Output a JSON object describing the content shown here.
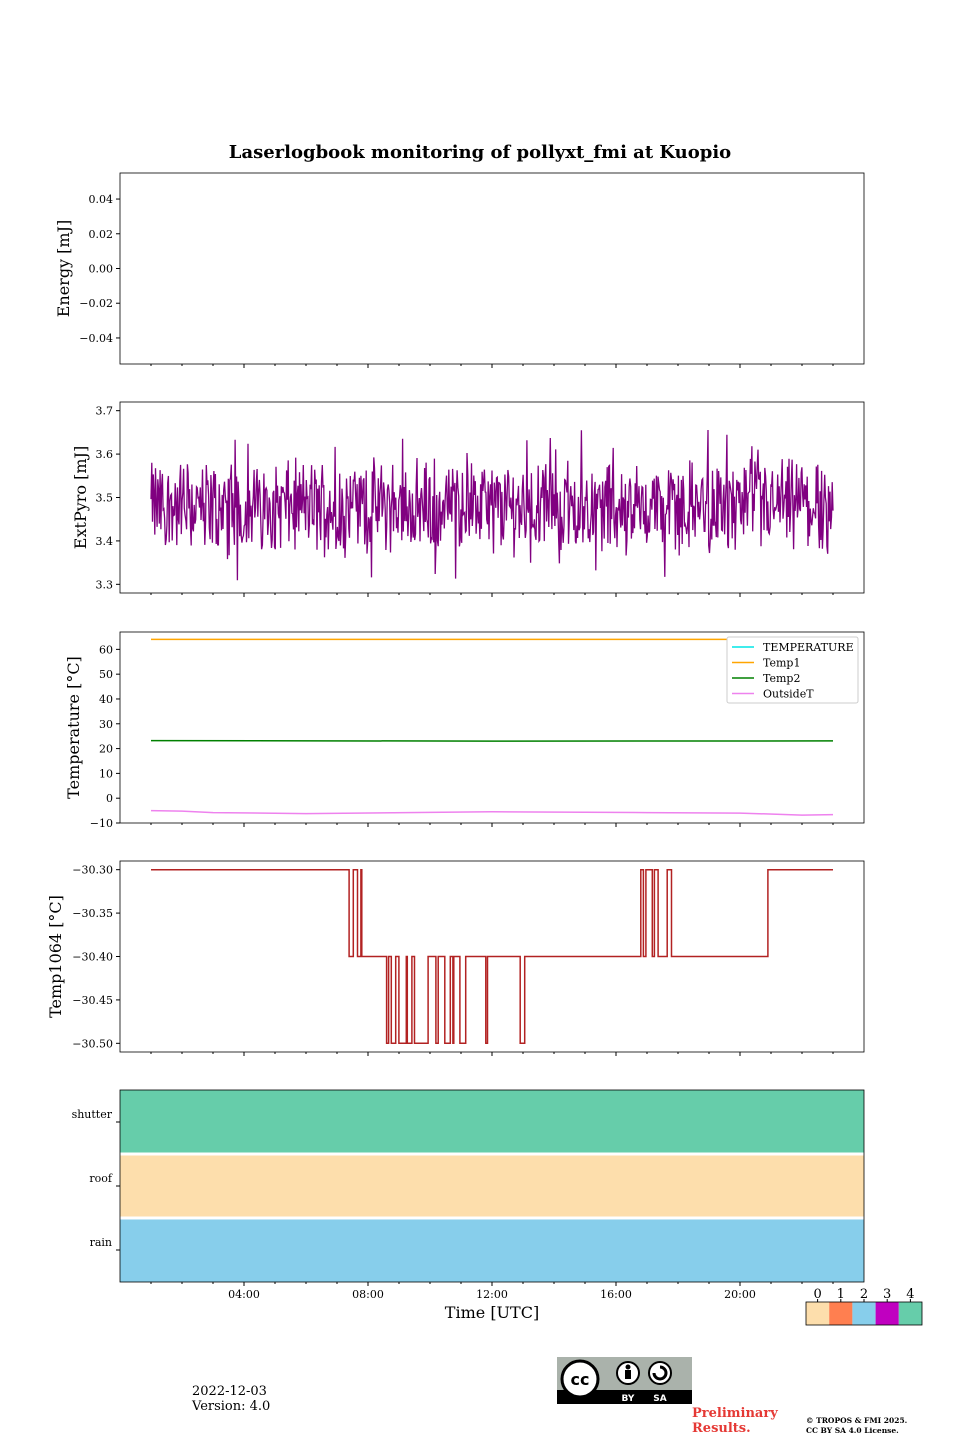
{
  "chart_data": {
    "title": "Laserlogbook monitoring of pollyxt_fmi at Kuopio",
    "xlabel": "Time [UTC]",
    "xticks": [
      "04:00",
      "08:00",
      "12:00",
      "16:00",
      "20:00"
    ],
    "panels": [
      {
        "type": "line",
        "ylabel": "Energy [mJ]",
        "yticks": [
          "0.04",
          "0.02",
          "0.00",
          "−0.02",
          "−0.04"
        ],
        "ylim": [
          -0.055,
          0.055
        ],
        "series": []
      },
      {
        "type": "line",
        "ylabel": "ExtPyro [mJ]",
        "yticks": [
          "3.7",
          "3.6",
          "3.5",
          "3.4",
          "3.3"
        ],
        "ylim": [
          3.28,
          3.72
        ],
        "series": [
          {
            "name": "ExtPyro",
            "color": "#800080",
            "mean": 3.48,
            "range": [
              3.3,
              3.7
            ],
            "description": "noisy signal fluctuating around 3.48 mJ between 01:00 and 23:00"
          }
        ]
      },
      {
        "type": "line",
        "ylabel": "Temperature [°C]",
        "yticks": [
          "60",
          "50",
          "40",
          "30",
          "20",
          "10",
          "0",
          "−10"
        ],
        "ylim": [
          -10,
          67
        ],
        "legend": [
          "TEMPERATURE",
          "Temp1",
          "Temp2",
          "OutsideT"
        ],
        "legend_colors": [
          "#00e5e5",
          "#ffa500",
          "#008000",
          "#ee82ee"
        ],
        "series": [
          {
            "name": "TEMPERATURE",
            "color": "#00e5e5",
            "values": []
          },
          {
            "name": "Temp1",
            "color": "#ffa500",
            "x": [
              1,
              23
            ],
            "values": [
              64,
              64
            ]
          },
          {
            "name": "Temp2",
            "color": "#008000",
            "x": [
              1,
              12,
              23
            ],
            "values": [
              23.2,
              23.0,
              23.1
            ]
          },
          {
            "name": "OutsideT",
            "color": "#ee82ee",
            "x": [
              1,
              2,
              3,
              6,
              12,
              17,
              20,
              22,
              23
            ],
            "values": [
              -5,
              -5.2,
              -5.8,
              -6.2,
              -5.5,
              -5.8,
              -6.0,
              -6.8,
              -6.6
            ]
          }
        ]
      },
      {
        "type": "step",
        "ylabel": "Temp1064 [°C]",
        "yticks": [
          "−30.30",
          "−30.35",
          "−30.40",
          "−30.45",
          "−30.50"
        ],
        "ylim": [
          -30.51,
          -30.29
        ],
        "series": [
          {
            "name": "Temp1064",
            "color": "#b22222",
            "levels": [
              -30.3,
              -30.4,
              -30.5
            ]
          }
        ]
      },
      {
        "type": "heatmap",
        "rows": [
          "shutter",
          "roof",
          "rain"
        ],
        "row_colors": [
          "#66cdaa",
          "#fddeac",
          "#87ceeb"
        ],
        "row_values": [
          4,
          0,
          2
        ],
        "colorbar": {
          "ticks": [
            "0",
            "1",
            "2",
            "3",
            "4"
          ],
          "colors": [
            "#fddeac",
            "#ff7f50",
            "#87ceeb",
            "#c000c0",
            "#66cdaa"
          ]
        }
      }
    ]
  },
  "footer": {
    "date": "2022-12-03",
    "version": "Version: 4.0",
    "preliminary_1": "Preliminary",
    "preliminary_2": "Results.",
    "copyright_1": "© TROPOS & FMI 2025.",
    "copyright_2": "CC BY SA 4.0 License.",
    "cc_by": "BY",
    "cc_sa": "SA"
  }
}
